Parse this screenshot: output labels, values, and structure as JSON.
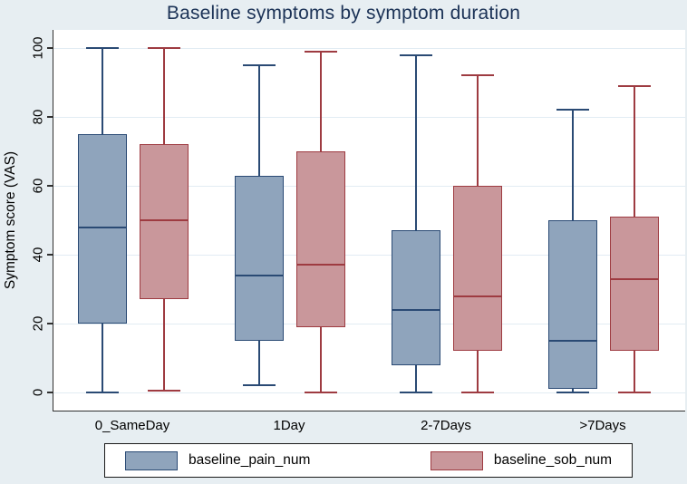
{
  "chart_data": {
    "type": "boxplot",
    "title": "Baseline symptoms by symptom duration",
    "ylabel": "Symptom score (VAS)",
    "xlabel": "",
    "ylim": [
      0,
      100
    ],
    "yticks": [
      0,
      20,
      40,
      60,
      80,
      100
    ],
    "grid": true,
    "legend_position": "bottom",
    "categories": [
      "0_SameDay",
      "1Day",
      "2-7Days",
      ">7Days"
    ],
    "series": [
      {
        "name": "baseline_pain_num",
        "fill": "#8fa4bc",
        "stroke": "#2a4a74",
        "boxes": [
          {
            "low": 0,
            "q1": 20,
            "median": 48,
            "q3": 75,
            "high": 100
          },
          {
            "low": 2,
            "q1": 15,
            "median": 34,
            "q3": 63,
            "high": 95
          },
          {
            "low": 0,
            "q1": 8,
            "median": 24,
            "q3": 47,
            "high": 98
          },
          {
            "low": 0,
            "q1": 1,
            "median": 15,
            "q3": 50,
            "high": 82
          }
        ]
      },
      {
        "name": "baseline_sob_num",
        "fill": "#c9979b",
        "stroke": "#9e3b41",
        "boxes": [
          {
            "low": 0.5,
            "q1": 27,
            "median": 50,
            "q3": 72,
            "high": 100
          },
          {
            "low": 0,
            "q1": 19,
            "median": 37,
            "q3": 70,
            "high": 99
          },
          {
            "low": 0,
            "q1": 12,
            "median": 28,
            "q3": 60,
            "high": 92
          },
          {
            "low": 0,
            "q1": 12,
            "median": 33,
            "q3": 51,
            "high": 89
          }
        ]
      }
    ],
    "colors": {
      "background": "#e7eef2",
      "plot_background": "#ffffff",
      "gridline": "#e2ecf3",
      "axis": "#303030",
      "title": "#1b3256",
      "text": "#000000"
    }
  }
}
